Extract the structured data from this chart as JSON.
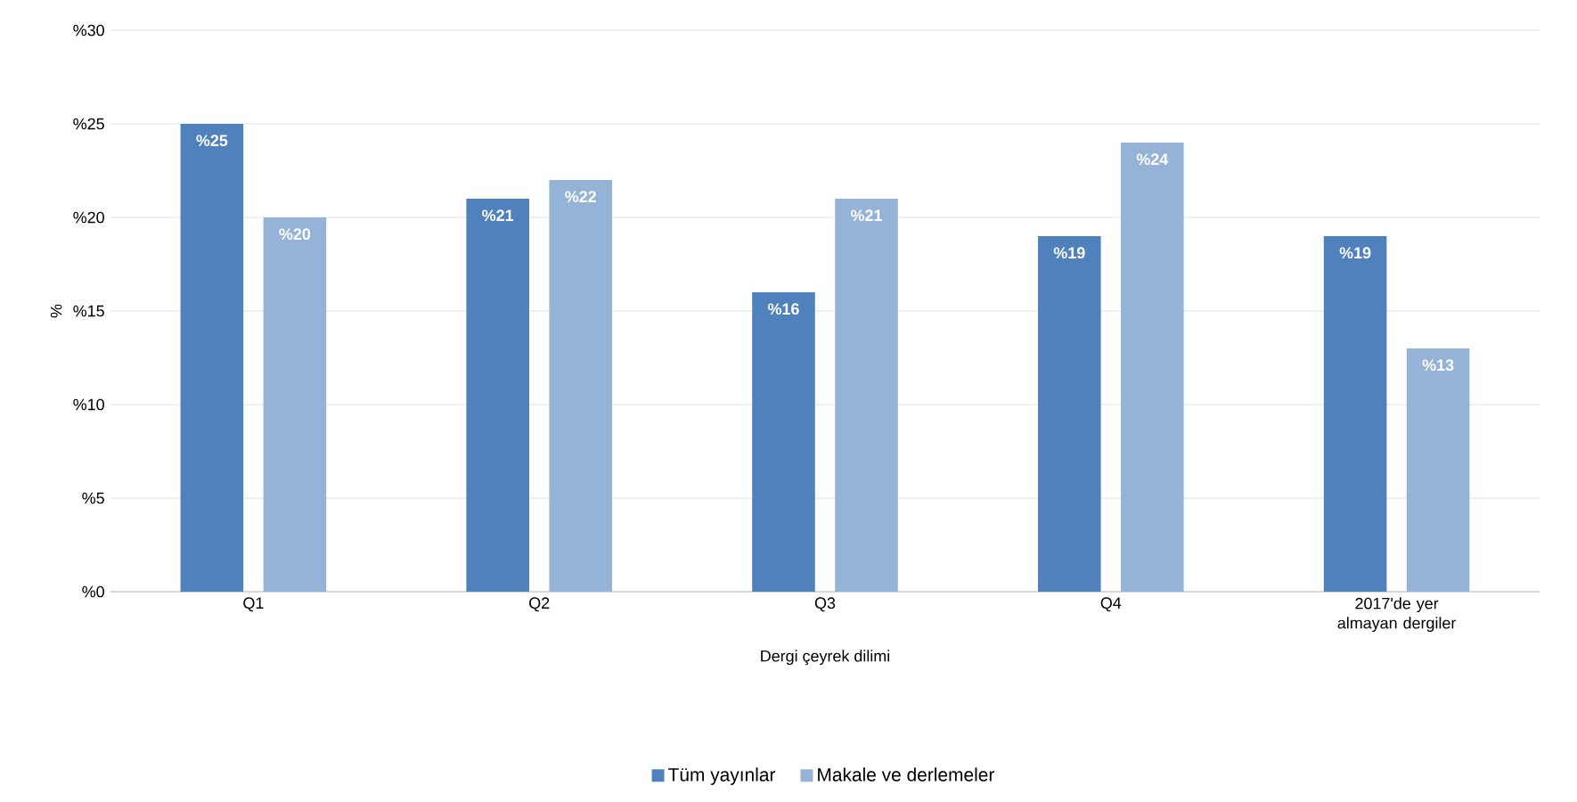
{
  "chart_data": {
    "type": "bar",
    "xlabel": "Dergi çeyrek dilimi",
    "ylabel": "%",
    "categories": [
      "Q1",
      "Q2",
      "Q3",
      "Q4",
      "2017'de yer almayan dergiler"
    ],
    "series": [
      {
        "name": "Tüm yayınlar",
        "color": "#4f81bd",
        "values": [
          25,
          21,
          16,
          19,
          19
        ],
        "value_labels": [
          "%25",
          "%21",
          "%16",
          "%19",
          "%19"
        ]
      },
      {
        "name": "Makale ve derlemeler",
        "color": "#95b3d7",
        "values": [
          20,
          22,
          21,
          24,
          13
        ],
        "value_labels": [
          "%20",
          "%22",
          "%21",
          "%24",
          "%13"
        ]
      }
    ],
    "ylim": [
      0,
      30
    ],
    "yticks": [
      {
        "value": 0,
        "label": "%0"
      },
      {
        "value": 5,
        "label": "%5"
      },
      {
        "value": 10,
        "label": "%10"
      },
      {
        "value": 15,
        "label": "%15"
      },
      {
        "value": 20,
        "label": "%20"
      },
      {
        "value": 25,
        "label": "%25"
      },
      {
        "value": 30,
        "label": "%30"
      }
    ],
    "grid": "y",
    "legend": "bottom"
  }
}
